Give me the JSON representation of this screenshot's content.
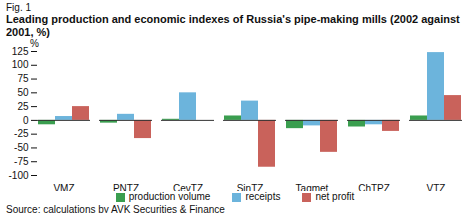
{
  "chart_data": {
    "type": "bar",
    "figure_label": "Fig. 1",
    "title": "Leading production and economic indexes of Russia's pipe-making mills (2002 against 2001, %)",
    "ylabel": "%",
    "source": "Source: calculations by AVK Securities & Finance",
    "categories": [
      "VMZ",
      "PNTZ",
      "CevTZ",
      "SinTZ",
      "Tagmet",
      "ChTPZ",
      "VTZ"
    ],
    "series": [
      {
        "name": "production volume",
        "color": "#3a9e4f",
        "values": [
          -8,
          -5,
          2,
          8,
          -15,
          -12,
          8
        ]
      },
      {
        "name": "receipts",
        "color": "#6cb4dc",
        "values": [
          7,
          11,
          50,
          35,
          -10,
          -8,
          123
        ]
      },
      {
        "name": "net profit",
        "color": "#c9625b",
        "values": [
          25,
          -33,
          0,
          -85,
          -58,
          -20,
          45
        ]
      }
    ],
    "ylim": [
      -100,
      125
    ],
    "yticks": [
      -100,
      -75,
      -50,
      -25,
      0,
      25,
      50,
      75,
      100,
      125
    ],
    "grid": false,
    "legend": "bottom"
  }
}
